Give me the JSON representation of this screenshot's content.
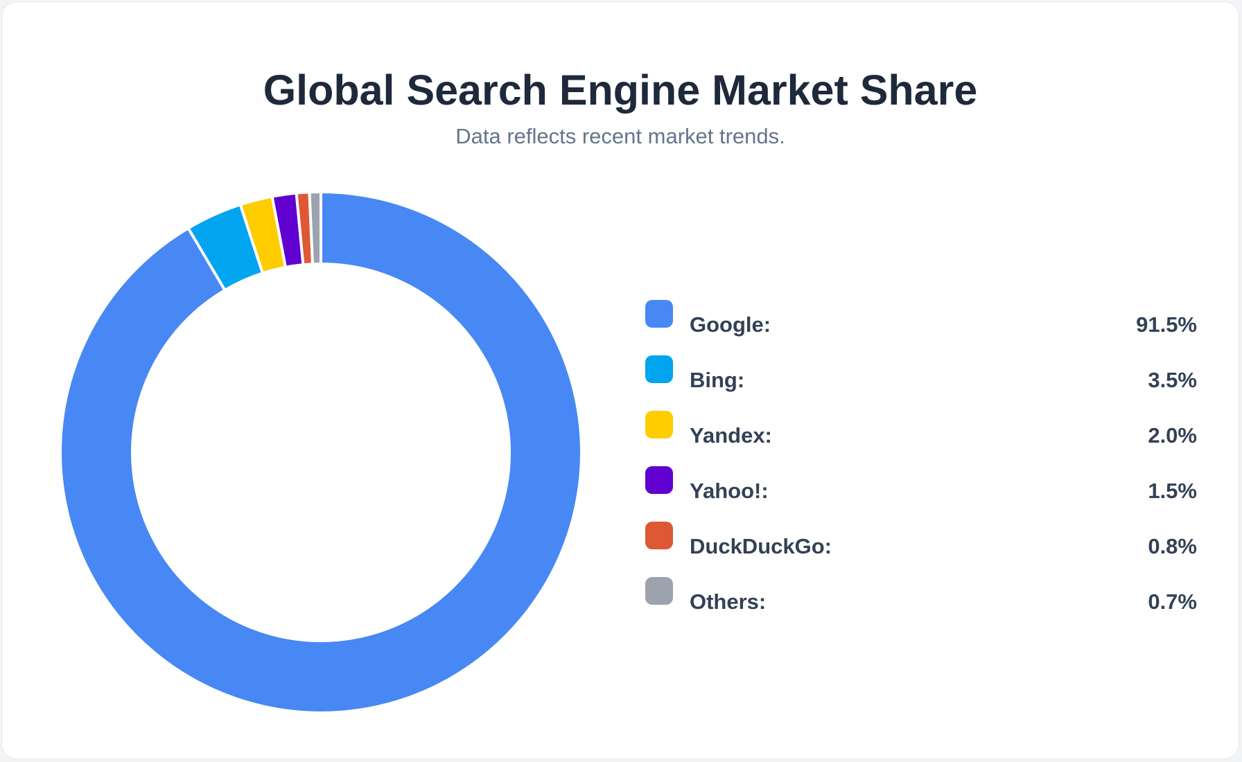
{
  "chart_data": {
    "type": "pie",
    "variant": "donut",
    "title": "Global Search Engine Market Share",
    "subtitle": "Data reflects recent market trends.",
    "legend_position": "right",
    "slices": [
      {
        "label": "Google:",
        "value": 91.5,
        "value_text": "91.5%",
        "color": "#4788f4"
      },
      {
        "label": "Bing:",
        "value": 3.5,
        "value_text": "3.5%",
        "color": "#00a4ef"
      },
      {
        "label": "Yandex:",
        "value": 2.0,
        "value_text": "2.0%",
        "color": "#ffcc00"
      },
      {
        "label": "Yahoo!:",
        "value": 1.5,
        "value_text": "1.5%",
        "color": "#6001d2"
      },
      {
        "label": "DuckDuckGo:",
        "value": 0.8,
        "value_text": "0.8%",
        "color": "#de5833"
      },
      {
        "label": "Others:",
        "value": 0.7,
        "value_text": "0.7%",
        "color": "#9ca3af"
      }
    ]
  }
}
